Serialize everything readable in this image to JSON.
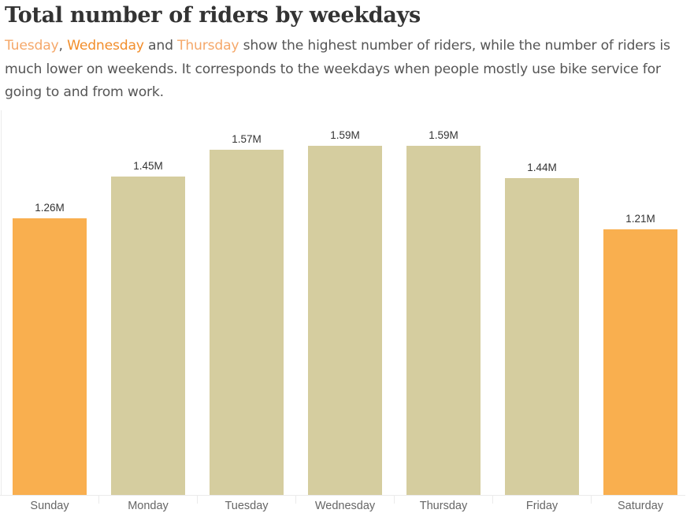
{
  "header": {
    "title": "Total number of riders by weekdays",
    "subtitle_parts": [
      {
        "text": "Tuesday",
        "highlight": true
      },
      {
        "text": ", ",
        "highlight": false
      },
      {
        "text": "Wednesday",
        "highlight": true
      },
      {
        "text": " and ",
        "highlight": false
      },
      {
        "text": "Thursday",
        "highlight": true
      },
      {
        "text": " show the highest number of riders, while the number of riders is much lower on weekends. It corresponds to the weekdays when people mostly use bike service for going to and from work.",
        "highlight": false
      }
    ]
  },
  "colors": {
    "weekend": "#f9af4f",
    "weekday": "#d5cd9f",
    "highlight_text": "#f28e2b",
    "title": "#333333",
    "body_text": "#555555"
  },
  "chart_data": {
    "type": "bar",
    "title": "Total number of riders by weekdays",
    "xlabel": "",
    "ylabel": "",
    "categories": [
      "Sunday",
      "Monday",
      "Tuesday",
      "Wednesday",
      "Thursday",
      "Friday",
      "Saturday"
    ],
    "values": [
      1.26,
      1.45,
      1.57,
      1.59,
      1.59,
      1.44,
      1.21
    ],
    "value_labels": [
      "1.26M",
      "1.45M",
      "1.57M",
      "1.59M",
      "1.59M",
      "1.44M",
      "1.21M"
    ],
    "units": "millions of riders",
    "bar_colors": [
      "#f9af4f",
      "#d5cd9f",
      "#d5cd9f",
      "#d5cd9f",
      "#d5cd9f",
      "#d5cd9f",
      "#f9af4f"
    ],
    "ylim": [
      0,
      1.75
    ],
    "grid": false,
    "legend": null
  }
}
